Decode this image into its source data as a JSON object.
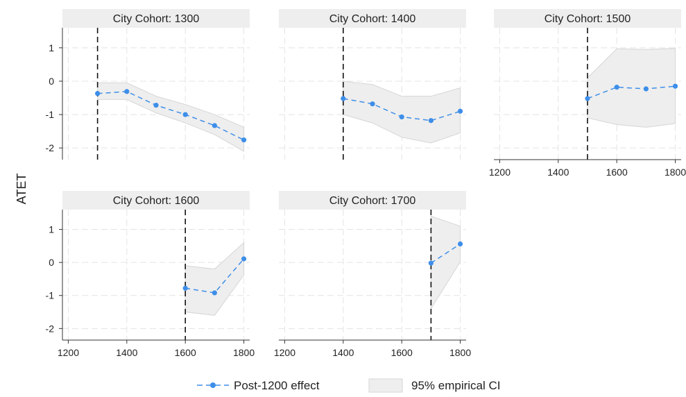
{
  "chart_data": {
    "type": "line",
    "ylabel": "ATET",
    "legend": {
      "placement": "bottom",
      "entries": [
        {
          "label": "Post-1200 effect",
          "kind": "line-marker"
        },
        {
          "label": "95% empirical CI",
          "kind": "band"
        }
      ]
    },
    "xlim": [
      1180,
      1820
    ],
    "ylim": [
      -2.35,
      1.6
    ],
    "xticks": [
      1200,
      1400,
      1600,
      1800
    ],
    "yticks": [
      1,
      0,
      -1,
      -2
    ],
    "ytick_labels": [
      "1",
      "0",
      "-1",
      "-2"
    ],
    "grid": true,
    "colors": {
      "series": "#3d8ee9",
      "band": "#eeeeee",
      "band_edge": "#d6d6d6",
      "header": "#eeeeee",
      "grid": "#e4e4e4"
    },
    "panels": [
      {
        "title": "City Cohort: 1300",
        "treatment_x": 1300,
        "show_x_ticks": false,
        "show_y_ticks": true,
        "x": [
          1300,
          1400,
          1500,
          1600,
          1700,
          1800
        ],
        "y": [
          -0.37,
          -0.31,
          -0.72,
          -1.0,
          -1.33,
          -1.76
        ],
        "ci_low": [
          -0.55,
          -0.55,
          -0.95,
          -1.25,
          -1.6,
          -2.1
        ],
        "ci_high": [
          -0.05,
          -0.05,
          -0.45,
          -0.7,
          -1.0,
          -1.38
        ]
      },
      {
        "title": "City Cohort: 1400",
        "treatment_x": 1400,
        "show_x_ticks": false,
        "show_y_ticks": false,
        "x": [
          1400,
          1500,
          1600,
          1700,
          1800
        ],
        "y": [
          -0.52,
          -0.68,
          -1.07,
          -1.18,
          -0.9
        ],
        "ci_low": [
          -1.0,
          -1.25,
          -1.68,
          -1.85,
          -1.55
        ],
        "ci_high": [
          0.0,
          -0.1,
          -0.45,
          -0.45,
          -0.2
        ]
      },
      {
        "title": "City Cohort: 1500",
        "treatment_x": 1500,
        "show_x_ticks": true,
        "show_y_ticks": false,
        "x": [
          1500,
          1600,
          1700,
          1800
        ],
        "y": [
          -0.52,
          -0.18,
          -0.23,
          -0.15
        ],
        "ci_low": [
          -1.1,
          -1.3,
          -1.38,
          -1.27
        ],
        "ci_high": [
          0.1,
          0.97,
          0.95,
          0.98
        ]
      },
      {
        "title": "City Cohort: 1600",
        "treatment_x": 1600,
        "show_x_ticks": true,
        "show_y_ticks": true,
        "x": [
          1600,
          1700,
          1800
        ],
        "y": [
          -0.78,
          -0.92,
          0.11
        ],
        "ci_low": [
          -1.5,
          -1.6,
          -0.38
        ],
        "ci_high": [
          -0.1,
          -0.2,
          0.6
        ]
      },
      {
        "title": "City Cohort: 1700",
        "treatment_x": 1700,
        "show_x_ticks": true,
        "show_y_ticks": false,
        "x": [
          1700,
          1800
        ],
        "y": [
          -0.02,
          0.56
        ],
        "ci_low": [
          -1.4,
          0.02
        ],
        "ci_high": [
          1.4,
          1.1
        ]
      }
    ]
  }
}
